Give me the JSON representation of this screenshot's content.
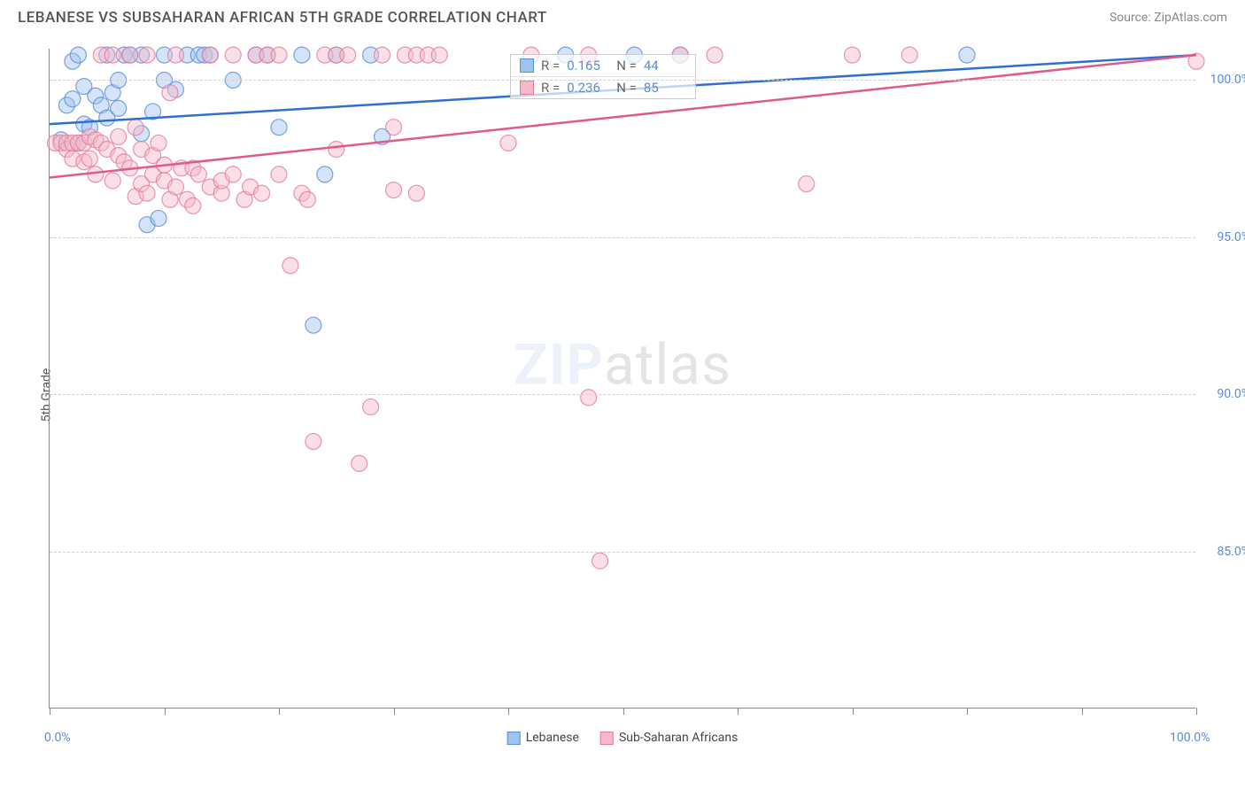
{
  "header": {
    "title": "LEBANESE VS SUBSAHARAN AFRICAN 5TH GRADE CORRELATION CHART",
    "source": "Source: ZipAtlas.com"
  },
  "axes": {
    "ylabel": "5th Grade",
    "xlim": [
      0,
      100
    ],
    "ylim": [
      80,
      101
    ],
    "xtick_positions": [
      0,
      10,
      20,
      30,
      40,
      50,
      60,
      70,
      80,
      90,
      100
    ],
    "xtick_labels": {
      "0": "0.0%",
      "100": "100.0%"
    },
    "ytick_positions": [
      85,
      90,
      95,
      100
    ],
    "ytick_labels": {
      "85": "85.0%",
      "90": "90.0%",
      "95": "95.0%",
      "100": "100.0%"
    }
  },
  "styling": {
    "grid_color": "#d0d0d0",
    "axis_color": "#888888",
    "tick_label_color": "#5b8cd6",
    "background_color": "#ffffff",
    "marker_radius": 9,
    "marker_opacity": 0.45,
    "line_width": 2.5
  },
  "watermark": {
    "bold": "ZIP",
    "rest": "atlas"
  },
  "series": [
    {
      "name": "Lebanese",
      "fill": "#9ec3f0",
      "stroke": "#5b8cd6",
      "line_color": "#2e6fd1",
      "trend": {
        "x1": 0,
        "y1": 98.6,
        "x2": 100,
        "y2": 100.8
      },
      "stats": {
        "R": "0.165",
        "N": "44"
      },
      "points": [
        [
          1,
          98.1
        ],
        [
          1.5,
          99.2
        ],
        [
          2,
          99.4
        ],
        [
          2,
          100.6
        ],
        [
          2.5,
          98.0
        ],
        [
          2.5,
          100.8
        ],
        [
          3,
          98.6
        ],
        [
          3,
          99.8
        ],
        [
          3.5,
          98.5
        ],
        [
          4,
          99.5
        ],
        [
          4.5,
          99.2
        ],
        [
          5,
          100.8
        ],
        [
          5,
          98.8
        ],
        [
          5.5,
          99.6
        ],
        [
          6,
          100.0
        ],
        [
          6,
          99.1
        ],
        [
          6.5,
          100.8
        ],
        [
          7,
          100.8
        ],
        [
          8,
          98.3
        ],
        [
          8,
          100.8
        ],
        [
          8.5,
          95.4
        ],
        [
          9,
          99.0
        ],
        [
          9.5,
          95.6
        ],
        [
          10,
          100.8
        ],
        [
          10,
          100.0
        ],
        [
          11,
          99.7
        ],
        [
          12,
          100.8
        ],
        [
          13,
          100.8
        ],
        [
          13.5,
          100.8
        ],
        [
          14,
          100.8
        ],
        [
          16,
          100.0
        ],
        [
          18,
          100.8
        ],
        [
          19,
          100.8
        ],
        [
          20,
          98.5
        ],
        [
          22,
          100.8
        ],
        [
          23,
          92.2
        ],
        [
          24,
          97.0
        ],
        [
          25,
          100.8
        ],
        [
          28,
          100.8
        ],
        [
          29,
          98.2
        ],
        [
          45,
          100.8
        ],
        [
          51,
          100.8
        ],
        [
          55,
          100.8
        ],
        [
          80,
          100.8
        ]
      ]
    },
    {
      "name": "Sub-Saharan Africans",
      "fill": "#f4b8c8",
      "stroke": "#e67a9b",
      "line_color": "#e05a88",
      "trend": {
        "x1": 0,
        "y1": 96.9,
        "x2": 100,
        "y2": 100.8
      },
      "stats": {
        "R": "0.236",
        "N": "85"
      },
      "points": [
        [
          0.5,
          98.0
        ],
        [
          1,
          98.0
        ],
        [
          1.5,
          97.8
        ],
        [
          1.5,
          98.0
        ],
        [
          2,
          97.5
        ],
        [
          2,
          98.0
        ],
        [
          2.5,
          98.0
        ],
        [
          3,
          97.4
        ],
        [
          3,
          98.0
        ],
        [
          3.5,
          98.2
        ],
        [
          3.5,
          97.5
        ],
        [
          4,
          97.0
        ],
        [
          4,
          98.1
        ],
        [
          4.5,
          98.0
        ],
        [
          4.5,
          100.8
        ],
        [
          5,
          97.8
        ],
        [
          5.5,
          96.8
        ],
        [
          5.5,
          100.8
        ],
        [
          6,
          97.6
        ],
        [
          6,
          98.2
        ],
        [
          6.5,
          97.4
        ],
        [
          7,
          97.2
        ],
        [
          7,
          100.8
        ],
        [
          7.5,
          96.3
        ],
        [
          7.5,
          98.5
        ],
        [
          8,
          97.8
        ],
        [
          8,
          96.7
        ],
        [
          8.5,
          96.4
        ],
        [
          8.5,
          100.8
        ],
        [
          9,
          97.6
        ],
        [
          9,
          97.0
        ],
        [
          9.5,
          98.0
        ],
        [
          10,
          96.8
        ],
        [
          10,
          97.3
        ],
        [
          10.5,
          96.2
        ],
        [
          10.5,
          99.6
        ],
        [
          11,
          96.6
        ],
        [
          11,
          100.8
        ],
        [
          11.5,
          97.2
        ],
        [
          12,
          96.2
        ],
        [
          12.5,
          97.2
        ],
        [
          12.5,
          96.0
        ],
        [
          13,
          97.0
        ],
        [
          14,
          96.6
        ],
        [
          14,
          100.8
        ],
        [
          15,
          96.4
        ],
        [
          15,
          96.8
        ],
        [
          16,
          97.0
        ],
        [
          16,
          100.8
        ],
        [
          17,
          96.2
        ],
        [
          17.5,
          96.6
        ],
        [
          18,
          100.8
        ],
        [
          18.5,
          96.4
        ],
        [
          19,
          100.8
        ],
        [
          20,
          97.0
        ],
        [
          20,
          100.8
        ],
        [
          21,
          94.1
        ],
        [
          22,
          96.4
        ],
        [
          22.5,
          96.2
        ],
        [
          23,
          88.5
        ],
        [
          24,
          100.8
        ],
        [
          25,
          97.8
        ],
        [
          25,
          100.8
        ],
        [
          26,
          100.8
        ],
        [
          27,
          87.8
        ],
        [
          28,
          89.6
        ],
        [
          29,
          100.8
        ],
        [
          30,
          96.5
        ],
        [
          30,
          98.5
        ],
        [
          31,
          100.8
        ],
        [
          32,
          96.4
        ],
        [
          32,
          100.8
        ],
        [
          33,
          100.8
        ],
        [
          34,
          100.8
        ],
        [
          40,
          98.0
        ],
        [
          42,
          100.8
        ],
        [
          47,
          89.9
        ],
        [
          47,
          100.8
        ],
        [
          48,
          84.7
        ],
        [
          55,
          100.8
        ],
        [
          58,
          100.8
        ],
        [
          66,
          96.7
        ],
        [
          70,
          100.8
        ],
        [
          75,
          100.8
        ],
        [
          100,
          100.6
        ]
      ]
    }
  ],
  "legend": {
    "items": [
      {
        "label": "Lebanese",
        "fill": "#9ec3f0",
        "stroke": "#5b8cd6"
      },
      {
        "label": "Sub-Saharan Africans",
        "fill": "#f4b8c8",
        "stroke": "#e67a9b"
      }
    ]
  }
}
